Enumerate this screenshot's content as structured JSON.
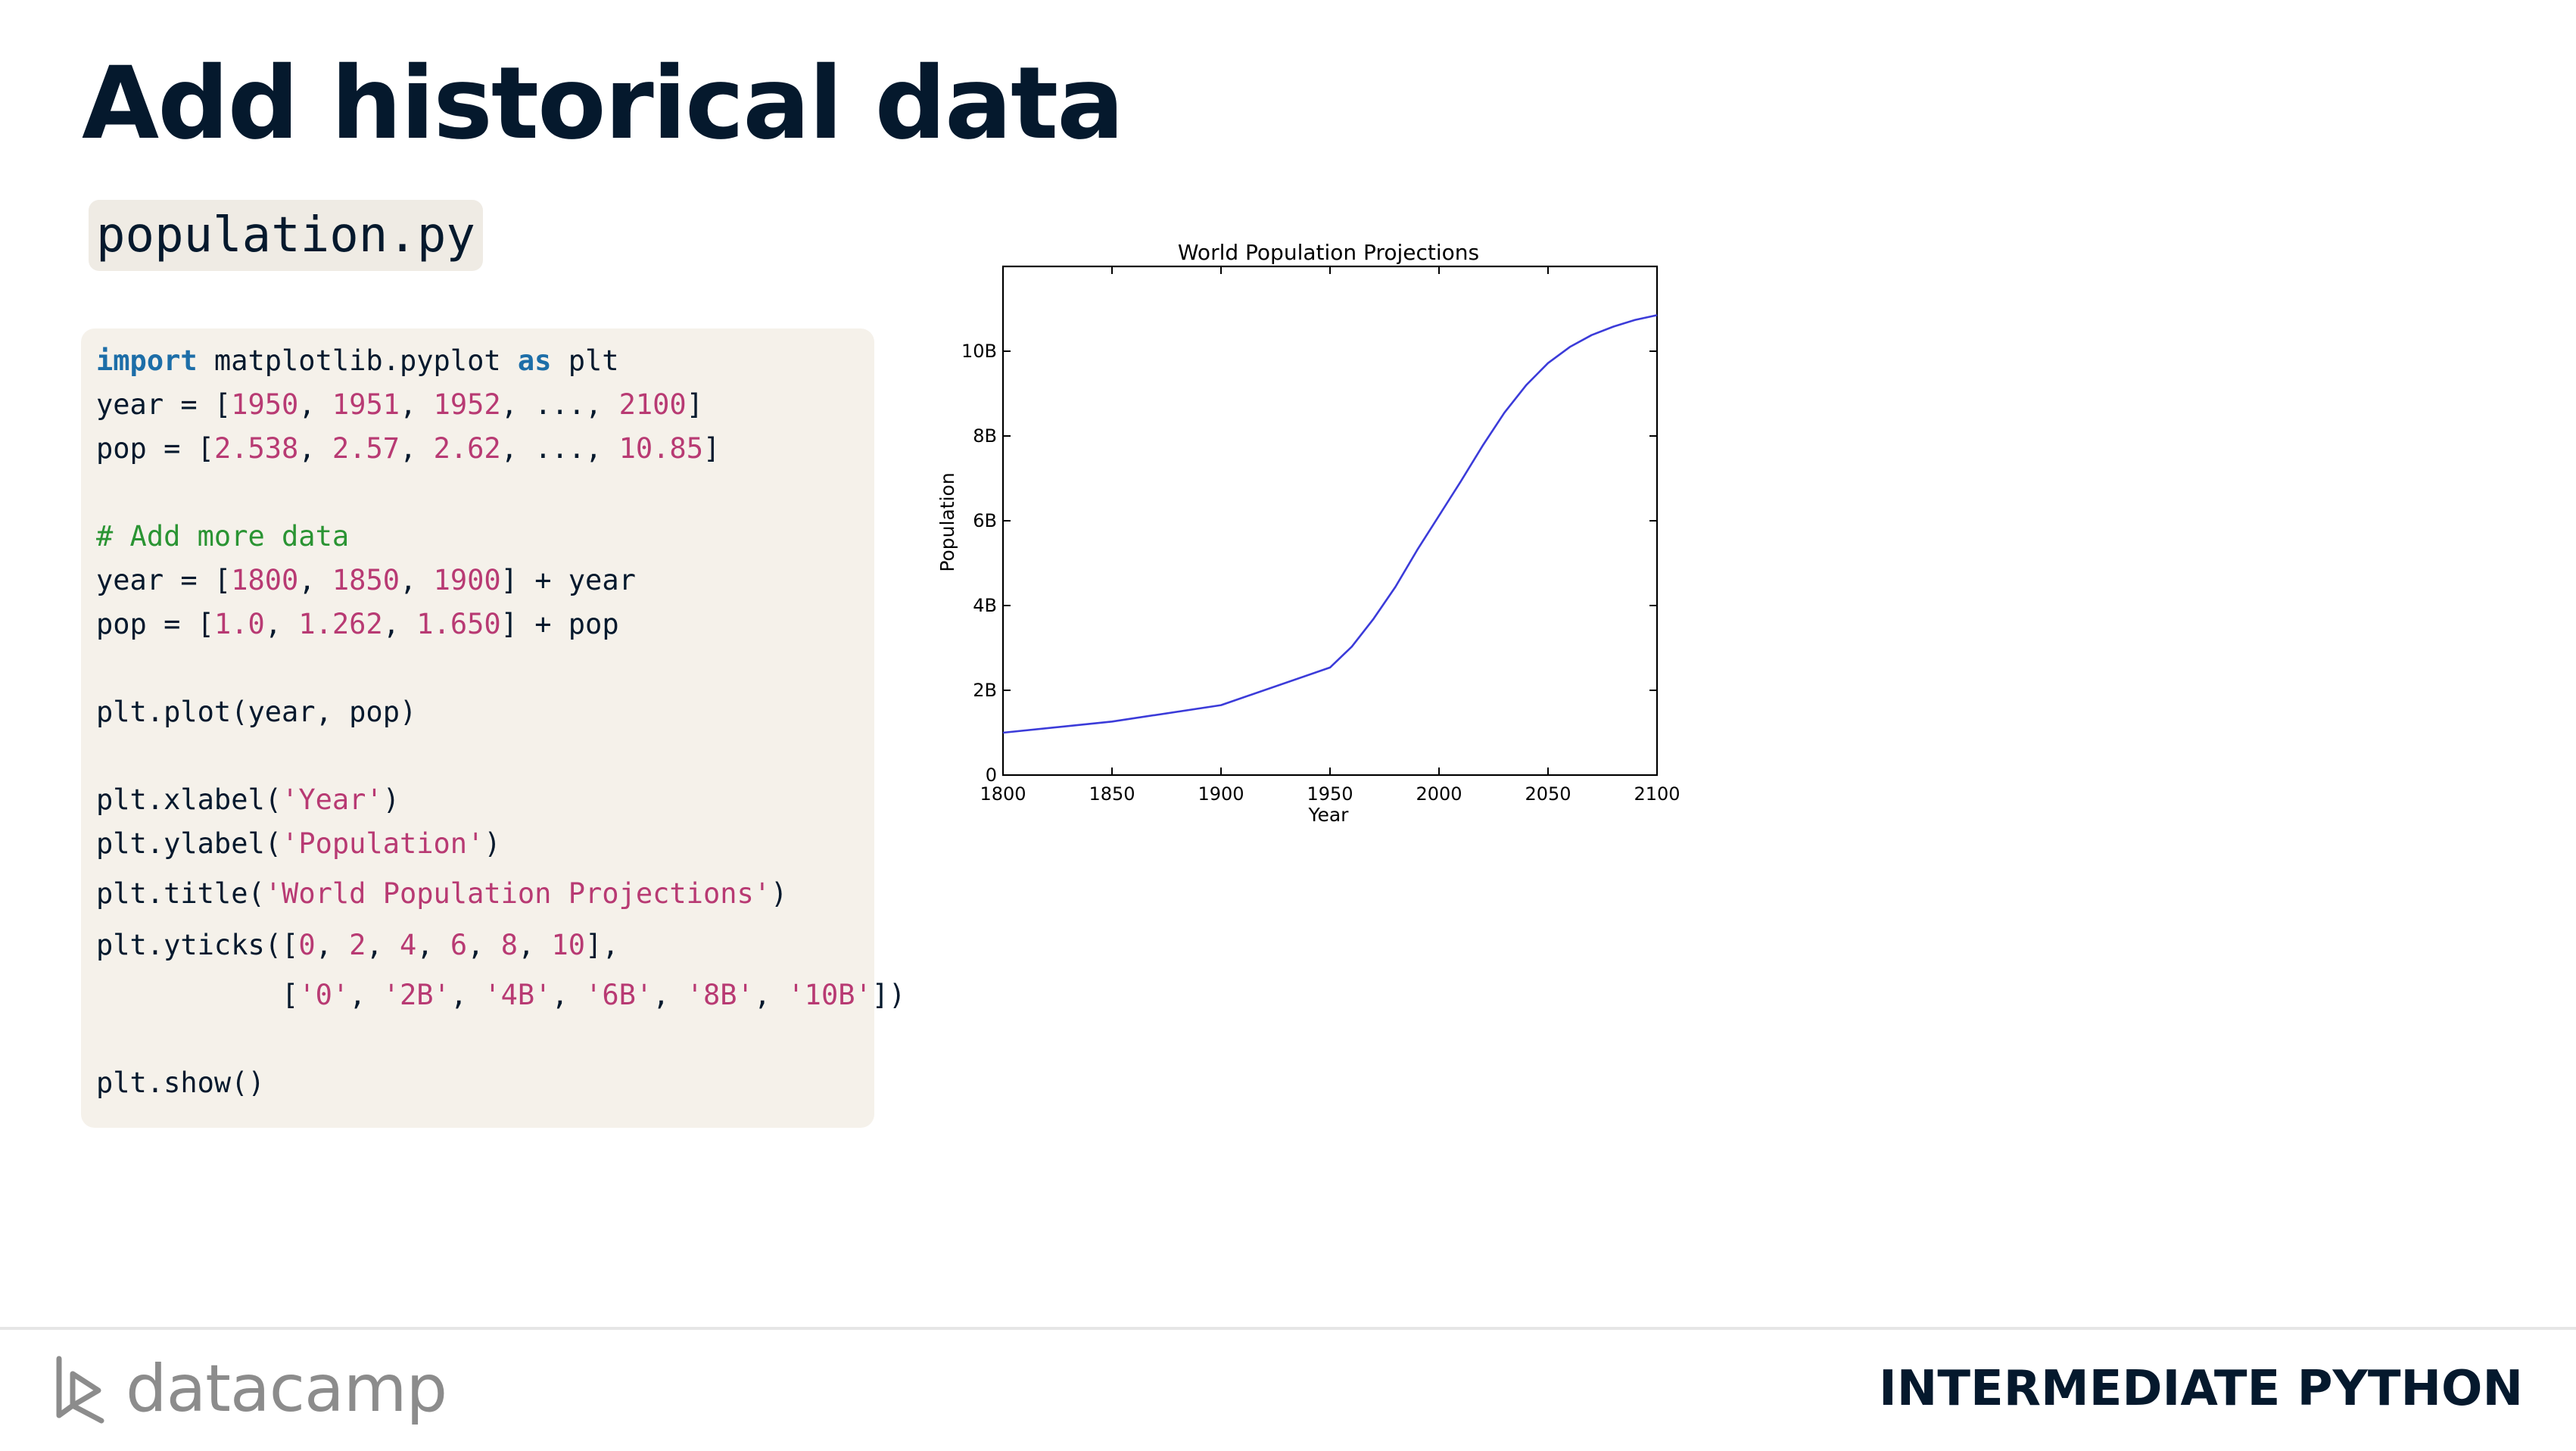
{
  "slide": {
    "title": "Add historical data"
  },
  "file": {
    "name": "population.py"
  },
  "code": {
    "lines": [
      [
        {
          "t": "import",
          "c": "kw"
        },
        {
          "t": " matplotlib.pyplot ",
          "c": "id"
        },
        {
          "t": "as",
          "c": "kw"
        },
        {
          "t": " plt",
          "c": "id"
        }
      ],
      [
        {
          "t": "year = [",
          "c": "id"
        },
        {
          "t": "1950",
          "c": "num"
        },
        {
          "t": ", ",
          "c": "id"
        },
        {
          "t": "1951",
          "c": "num"
        },
        {
          "t": ", ",
          "c": "id"
        },
        {
          "t": "1952",
          "c": "num"
        },
        {
          "t": ", ..., ",
          "c": "id"
        },
        {
          "t": "2100",
          "c": "num"
        },
        {
          "t": "]",
          "c": "id"
        }
      ],
      [
        {
          "t": "pop = [",
          "c": "id"
        },
        {
          "t": "2.538",
          "c": "num"
        },
        {
          "t": ", ",
          "c": "id"
        },
        {
          "t": "2.57",
          "c": "num"
        },
        {
          "t": ", ",
          "c": "id"
        },
        {
          "t": "2.62",
          "c": "num"
        },
        {
          "t": ", ..., ",
          "c": "id"
        },
        {
          "t": "10.85",
          "c": "num"
        },
        {
          "t": "]",
          "c": "id"
        }
      ],
      [],
      [
        {
          "t": "# Add more data",
          "c": "cm"
        }
      ],
      [
        {
          "t": "year = [",
          "c": "id"
        },
        {
          "t": "1800",
          "c": "num"
        },
        {
          "t": ", ",
          "c": "id"
        },
        {
          "t": "1850",
          "c": "num"
        },
        {
          "t": ", ",
          "c": "id"
        },
        {
          "t": "1900",
          "c": "num"
        },
        {
          "t": "] + year",
          "c": "id"
        }
      ],
      [
        {
          "t": "pop = [",
          "c": "id"
        },
        {
          "t": "1.0",
          "c": "num"
        },
        {
          "t": ", ",
          "c": "id"
        },
        {
          "t": "1.262",
          "c": "num"
        },
        {
          "t": ", ",
          "c": "id"
        },
        {
          "t": "1.650",
          "c": "num"
        },
        {
          "t": "] + pop",
          "c": "id"
        }
      ],
      [],
      [
        {
          "t": "plt.plot(year, pop)",
          "c": "id"
        }
      ],
      [],
      [
        {
          "t": "plt.xlabel(",
          "c": "id"
        },
        {
          "t": "'Year'",
          "c": "str"
        },
        {
          "t": ")",
          "c": "id"
        }
      ],
      [
        {
          "t": "plt.ylabel(",
          "c": "id"
        },
        {
          "t": "'Population'",
          "c": "str"
        },
        {
          "t": ")",
          "c": "id"
        }
      ],
      [
        {
          "t": "plt.title(",
          "c": "id"
        },
        {
          "t": "'World Population Projections'",
          "c": "str"
        },
        {
          "t": ")",
          "c": "id"
        }
      ],
      [
        {
          "t": "plt.yticks([",
          "c": "id"
        },
        {
          "t": "0",
          "c": "num"
        },
        {
          "t": ", ",
          "c": "id"
        },
        {
          "t": "2",
          "c": "num"
        },
        {
          "t": ", ",
          "c": "id"
        },
        {
          "t": "4",
          "c": "num"
        },
        {
          "t": ", ",
          "c": "id"
        },
        {
          "t": "6",
          "c": "num"
        },
        {
          "t": ", ",
          "c": "id"
        },
        {
          "t": "8",
          "c": "num"
        },
        {
          "t": ", ",
          "c": "id"
        },
        {
          "t": "10",
          "c": "num"
        },
        {
          "t": "],",
          "c": "id"
        }
      ],
      [
        {
          "t": "           [",
          "c": "id"
        },
        {
          "t": "'0'",
          "c": "str"
        },
        {
          "t": ", ",
          "c": "id"
        },
        {
          "t": "'2B'",
          "c": "str"
        },
        {
          "t": ", ",
          "c": "id"
        },
        {
          "t": "'4B'",
          "c": "str"
        },
        {
          "t": ", ",
          "c": "id"
        },
        {
          "t": "'6B'",
          "c": "str"
        },
        {
          "t": ", ",
          "c": "id"
        },
        {
          "t": "'8B'",
          "c": "str"
        },
        {
          "t": ", ",
          "c": "id"
        },
        {
          "t": "'10B'",
          "c": "str"
        },
        {
          "t": "])",
          "c": "id"
        }
      ],
      [],
      [
        {
          "t": "plt.show()",
          "c": "id"
        }
      ]
    ]
  },
  "chart_data": {
    "type": "line",
    "title": "World Population Projections",
    "xlabel": "Year",
    "ylabel": "Population",
    "xlim": [
      1800,
      2100
    ],
    "ylim": [
      0,
      12
    ],
    "xticks": [
      1800,
      1850,
      1900,
      1950,
      2000,
      2050,
      2100
    ],
    "yticks": [
      0,
      2,
      4,
      6,
      8,
      10
    ],
    "yticklabels": [
      "0",
      "2B",
      "4B",
      "6B",
      "8B",
      "10B"
    ],
    "grid": false,
    "line_color": "#3b3bd9",
    "series": [
      {
        "x": [
          1800,
          1850,
          1900,
          1950,
          1960,
          1970,
          1980,
          1990,
          2000,
          2010,
          2020,
          2030,
          2040,
          2050,
          2060,
          2070,
          2080,
          2090,
          2100
        ],
        "values": [
          1.0,
          1.262,
          1.65,
          2.538,
          3.03,
          3.69,
          4.44,
          5.31,
          6.12,
          6.93,
          7.77,
          8.55,
          9.2,
          9.72,
          10.1,
          10.38,
          10.58,
          10.74,
          10.85
        ]
      }
    ]
  },
  "footer": {
    "logo_text": "datacamp",
    "course": "INTERMEDIATE PYTHON"
  }
}
